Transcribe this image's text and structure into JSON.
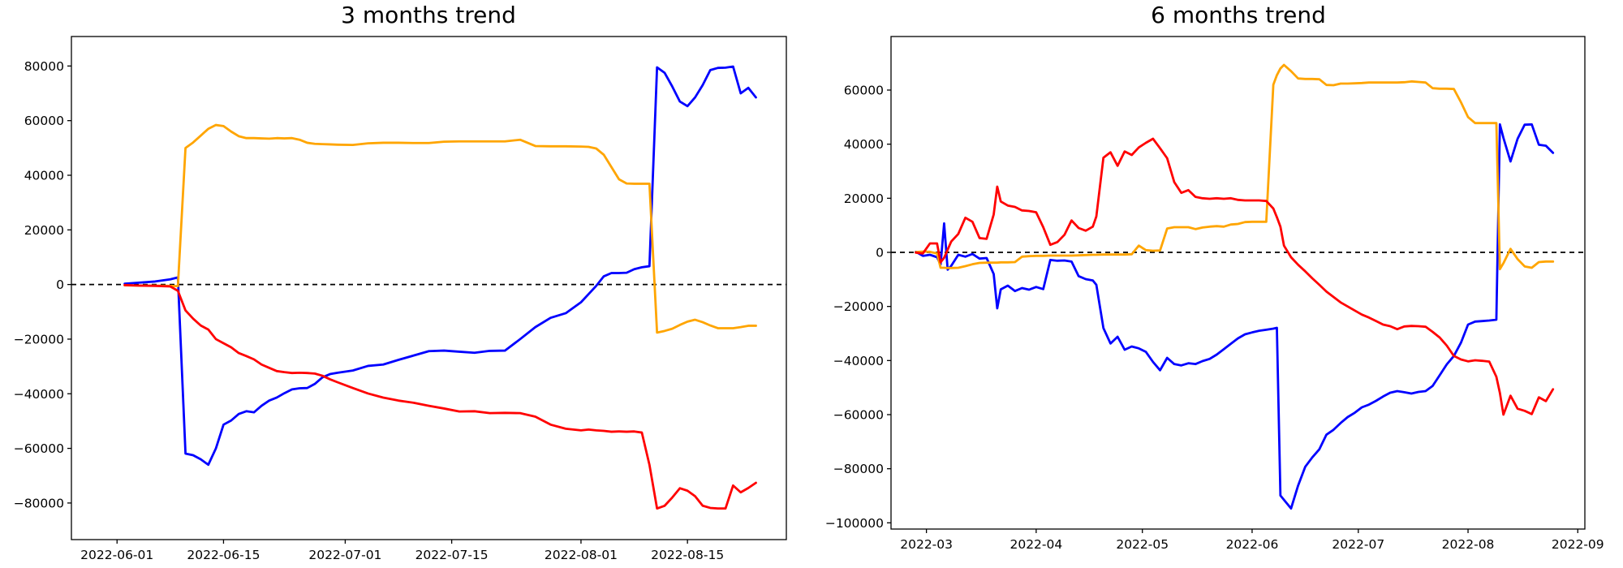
{
  "figure": {
    "background": "#ffffff",
    "zero_line_color": "#000000",
    "charts": [
      {
        "id": "3-months",
        "title": "3 months trend",
        "type": "line",
        "legend": "none",
        "grid": false,
        "xlim": [
          "2022-05-26",
          "2022-08-28"
        ],
        "ylim": [
          -93400,
          90800
        ],
        "x_ticks": [
          {
            "date": "2022-06-01",
            "label": "2022-06-01"
          },
          {
            "date": "2022-06-15",
            "label": "2022-06-15"
          },
          {
            "date": "2022-07-01",
            "label": "2022-07-01"
          },
          {
            "date": "2022-07-15",
            "label": "2022-07-15"
          },
          {
            "date": "2022-08-01",
            "label": "2022-08-01"
          },
          {
            "date": "2022-08-15",
            "label": "2022-08-15"
          }
        ],
        "y_ticks": [
          {
            "v": -80000,
            "label": "−80000"
          },
          {
            "v": -60000,
            "label": "−60000"
          },
          {
            "v": -40000,
            "label": "−40000"
          },
          {
            "v": -20000,
            "label": "−20000"
          },
          {
            "v": 0,
            "label": "0"
          },
          {
            "v": 20000,
            "label": "20000"
          },
          {
            "v": 40000,
            "label": "40000"
          },
          {
            "v": 60000,
            "label": "60000"
          },
          {
            "v": 80000,
            "label": "80000"
          }
        ],
        "zero_line": 0,
        "dates": [
          "2022-06-02",
          "2022-06-04",
          "2022-06-06",
          "2022-06-08",
          "2022-06-09",
          "2022-06-10",
          "2022-06-11",
          "2022-06-12",
          "2022-06-13",
          "2022-06-14",
          "2022-06-15",
          "2022-06-16",
          "2022-06-17",
          "2022-06-18",
          "2022-06-19",
          "2022-06-20",
          "2022-06-21",
          "2022-06-22",
          "2022-06-23",
          "2022-06-24",
          "2022-06-25",
          "2022-06-26",
          "2022-06-27",
          "2022-06-28",
          "2022-06-29",
          "2022-06-30",
          "2022-07-02",
          "2022-07-04",
          "2022-07-06",
          "2022-07-08",
          "2022-07-10",
          "2022-07-12",
          "2022-07-14",
          "2022-07-16",
          "2022-07-18",
          "2022-07-20",
          "2022-07-22",
          "2022-07-24",
          "2022-07-26",
          "2022-07-28",
          "2022-07-30",
          "2022-08-01",
          "2022-08-02",
          "2022-08-03",
          "2022-08-04",
          "2022-08-05",
          "2022-08-06",
          "2022-08-07",
          "2022-08-08",
          "2022-08-09",
          "2022-08-10",
          "2022-08-11",
          "2022-08-12",
          "2022-08-13",
          "2022-08-14",
          "2022-08-15",
          "2022-08-16",
          "2022-08-17",
          "2022-08-18",
          "2022-08-19",
          "2022-08-20",
          "2022-08-21",
          "2022-08-22",
          "2022-08-23",
          "2022-08-24"
        ],
        "series": [
          {
            "name": "blue-line",
            "color": "#0000ff",
            "values": [
              300,
              700,
              1100,
              1900,
              2600,
              -61900,
              -62500,
              -64000,
              -66000,
              -60000,
              -51300,
              -49800,
              -47400,
              -46400,
              -46800,
              -44400,
              -42500,
              -41400,
              -39800,
              -38400,
              -38000,
              -37900,
              -36400,
              -34000,
              -32800,
              -32300,
              -31500,
              -29800,
              -29300,
              -27600,
              -26000,
              -24400,
              -24200,
              -24600,
              -25000,
              -24300,
              -24200,
              -20000,
              -15600,
              -12200,
              -10500,
              -6500,
              -3500,
              -500,
              3000,
              4200,
              4200,
              4300,
              5600,
              6300,
              6700,
              79500,
              77500,
              72500,
              67000,
              65300,
              68500,
              73000,
              78500,
              79300,
              79400,
              79800,
              70000,
              72000,
              68500
            ]
          },
          {
            "name": "orange-line",
            "color": "#ffa500",
            "values": [
              -300,
              -400,
              -400,
              -500,
              -600,
              50000,
              52000,
              54500,
              57000,
              58400,
              58000,
              56000,
              54300,
              53600,
              53600,
              53500,
              53400,
              53600,
              53500,
              53600,
              53000,
              51900,
              51500,
              51400,
              51300,
              51200,
              51100,
              51700,
              51900,
              51900,
              51800,
              51800,
              52300,
              52400,
              52400,
              52400,
              52400,
              53000,
              50700,
              50600,
              50600,
              50500,
              50400,
              49800,
              47500,
              43000,
              38500,
              37000,
              36900,
              36900,
              36900,
              -17600,
              -17000,
              -16200,
              -14800,
              -13600,
              -12900,
              -13800,
              -15000,
              -16000,
              -16000,
              -16000,
              -15600,
              -15100,
              -15100
            ]
          },
          {
            "name": "red-line",
            "color": "#ff0000",
            "values": [
              -200,
              -400,
              -500,
              -700,
              -2300,
              -9500,
              -12500,
              -15000,
              -16500,
              -20000,
              -21500,
              -23000,
              -25100,
              -26200,
              -27400,
              -29300,
              -30500,
              -31700,
              -32100,
              -32400,
              -32300,
              -32400,
              -32600,
              -33400,
              -34700,
              -35800,
              -37900,
              -39900,
              -41400,
              -42500,
              -43300,
              -44400,
              -45400,
              -46500,
              -46400,
              -47100,
              -47000,
              -47100,
              -48400,
              -51300,
              -52800,
              -53400,
              -53100,
              -53400,
              -53600,
              -53900,
              -53800,
              -53900,
              -53800,
              -54200,
              -66000,
              -82000,
              -81000,
              -78000,
              -74600,
              -75500,
              -77500,
              -81000,
              -81800,
              -82000,
              -82000,
              -73600,
              -76100,
              -74500,
              -72600
            ]
          }
        ]
      },
      {
        "id": "6-months",
        "title": "6 months trend",
        "type": "line",
        "legend": "none",
        "grid": false,
        "xlim": [
          "2022-02-19",
          "2022-09-03"
        ],
        "ylim": [
          -102300,
          79800
        ],
        "x_ticks": [
          {
            "date": "2022-03-01",
            "label": "2022-03"
          },
          {
            "date": "2022-04-01",
            "label": "2022-04"
          },
          {
            "date": "2022-05-01",
            "label": "2022-05"
          },
          {
            "date": "2022-06-01",
            "label": "2022-06"
          },
          {
            "date": "2022-07-01",
            "label": "2022-07"
          },
          {
            "date": "2022-08-01",
            "label": "2022-08"
          },
          {
            "date": "2022-09-01",
            "label": "2022-09"
          }
        ],
        "y_ticks": [
          {
            "v": -100000,
            "label": "−100000"
          },
          {
            "v": -80000,
            "label": "−80000"
          },
          {
            "v": -60000,
            "label": "−60000"
          },
          {
            "v": -40000,
            "label": "−40000"
          },
          {
            "v": -20000,
            "label": "−20000"
          },
          {
            "v": 0,
            "label": "0"
          },
          {
            "v": 20000,
            "label": "20000"
          },
          {
            "v": 40000,
            "label": "40000"
          },
          {
            "v": 60000,
            "label": "60000"
          }
        ],
        "zero_line": 0,
        "dates": [
          "2022-02-26",
          "2022-02-28",
          "2022-03-02",
          "2022-03-04",
          "2022-03-05",
          "2022-03-06",
          "2022-03-07",
          "2022-03-08",
          "2022-03-10",
          "2022-03-12",
          "2022-03-14",
          "2022-03-16",
          "2022-03-18",
          "2022-03-20",
          "2022-03-21",
          "2022-03-22",
          "2022-03-24",
          "2022-03-26",
          "2022-03-28",
          "2022-03-30",
          "2022-04-01",
          "2022-04-03",
          "2022-04-05",
          "2022-04-07",
          "2022-04-09",
          "2022-04-11",
          "2022-04-13",
          "2022-04-15",
          "2022-04-17",
          "2022-04-18",
          "2022-04-20",
          "2022-04-22",
          "2022-04-24",
          "2022-04-26",
          "2022-04-28",
          "2022-04-30",
          "2022-05-02",
          "2022-05-04",
          "2022-05-06",
          "2022-05-08",
          "2022-05-10",
          "2022-05-12",
          "2022-05-14",
          "2022-05-16",
          "2022-05-18",
          "2022-05-20",
          "2022-05-22",
          "2022-05-24",
          "2022-05-26",
          "2022-05-28",
          "2022-05-30",
          "2022-06-01",
          "2022-06-03",
          "2022-06-05",
          "2022-06-07",
          "2022-06-08",
          "2022-06-09",
          "2022-06-10",
          "2022-06-12",
          "2022-06-14",
          "2022-06-16",
          "2022-06-18",
          "2022-06-20",
          "2022-06-22",
          "2022-06-24",
          "2022-06-26",
          "2022-06-28",
          "2022-06-30",
          "2022-07-02",
          "2022-07-04",
          "2022-07-06",
          "2022-07-08",
          "2022-07-10",
          "2022-07-12",
          "2022-07-14",
          "2022-07-16",
          "2022-07-18",
          "2022-07-20",
          "2022-07-22",
          "2022-07-24",
          "2022-07-26",
          "2022-07-28",
          "2022-07-30",
          "2022-08-01",
          "2022-08-03",
          "2022-08-05",
          "2022-08-07",
          "2022-08-09",
          "2022-08-10",
          "2022-08-11",
          "2022-08-13",
          "2022-08-15",
          "2022-08-17",
          "2022-08-19",
          "2022-08-21",
          "2022-08-23",
          "2022-08-25"
        ],
        "series": [
          {
            "name": "blue-line",
            "color": "#0000ff",
            "values": [
              200,
              -1300,
              -900,
              -1800,
              -4500,
              10700,
              -6400,
              -5000,
              -900,
              -1600,
              -600,
              -2300,
              -2100,
              -8000,
              -20700,
              -13700,
              -12300,
              -14300,
              -13200,
              -13800,
              -12800,
              -13600,
              -2800,
              -3100,
              -3000,
              -3400,
              -8800,
              -9900,
              -10400,
              -12000,
              -28000,
              -33700,
              -31200,
              -36000,
              -34800,
              -35500,
              -36800,
              -40500,
              -43600,
              -39000,
              -41300,
              -41800,
              -41000,
              -41300,
              -40200,
              -39400,
              -37800,
              -35800,
              -33800,
              -31800,
              -30300,
              -29600,
              -29000,
              -28600,
              -28200,
              -27900,
              -89900,
              -91500,
              -94700,
              -86200,
              -79300,
              -75800,
              -72800,
              -67400,
              -65600,
              -63100,
              -60900,
              -59300,
              -57300,
              -56300,
              -54900,
              -53300,
              -51900,
              -51300,
              -51700,
              -52200,
              -51600,
              -51300,
              -49400,
              -45400,
              -41400,
              -38300,
              -33400,
              -26700,
              -25600,
              -25400,
              -25200,
              -24900,
              47300,
              42300,
              33600,
              42000,
              47200,
              47300,
              39800,
              39400,
              36800
            ]
          },
          {
            "name": "orange-line",
            "color": "#ffa500",
            "values": [
              100,
              300,
              200,
              -400,
              -5700,
              -5700,
              -5800,
              -5800,
              -5700,
              -5100,
              -4400,
              -3900,
              -3800,
              -3800,
              -3800,
              -3700,
              -3700,
              -3600,
              -1600,
              -1400,
              -1300,
              -1300,
              -1200,
              -1200,
              -1200,
              -1200,
              -1100,
              -1000,
              -900,
              -900,
              -800,
              -800,
              -800,
              -800,
              -700,
              2500,
              800,
              600,
              700,
              8800,
              9300,
              9300,
              9300,
              8600,
              9200,
              9500,
              9700,
              9500,
              10300,
              10500,
              11200,
              11300,
              11300,
              11300,
              62000,
              65500,
              68000,
              69300,
              67000,
              64300,
              64100,
              64100,
              64000,
              61900,
              61800,
              62400,
              62400,
              62500,
              62600,
              62800,
              62800,
              62800,
              62800,
              62800,
              62900,
              63200,
              63000,
              62800,
              60700,
              60500,
              60500,
              60400,
              55500,
              50000,
              47800,
              47800,
              47800,
              47800,
              -6200,
              -4000,
              1300,
              -2500,
              -5200,
              -5700,
              -3600,
              -3400,
              -3400
            ]
          },
          {
            "name": "red-line",
            "color": "#ff0000",
            "values": [
              -100,
              -400,
              3300,
              3300,
              -3700,
              -2000,
              1000,
              4000,
              6800,
              12800,
              11300,
              5300,
              5000,
              14000,
              24300,
              18800,
              17300,
              16800,
              15500,
              15300,
              14800,
              9300,
              2800,
              3800,
              6500,
              11800,
              9000,
              8000,
              9500,
              13300,
              35000,
              37000,
              32000,
              37300,
              36000,
              38800,
              40500,
              42000,
              38500,
              34800,
              26000,
              22000,
              23000,
              20500,
              20000,
              19800,
              20000,
              19800,
              20000,
              19400,
              19200,
              19200,
              19200,
              19000,
              16200,
              13000,
              9500,
              2500,
              -1800,
              -4600,
              -7000,
              -9600,
              -12000,
              -14500,
              -16500,
              -18500,
              -20000,
              -21500,
              -23000,
              -24100,
              -25400,
              -26700,
              -27300,
              -28400,
              -27400,
              -27200,
              -27300,
              -27500,
              -29400,
              -31500,
              -34500,
              -38300,
              -39600,
              -40300,
              -39900,
              -40100,
              -40400,
              -46000,
              -52000,
              -60000,
              -53000,
              -57800,
              -58600,
              -59800,
              -53600,
              -55000,
              -50600
            ]
          }
        ]
      }
    ]
  }
}
